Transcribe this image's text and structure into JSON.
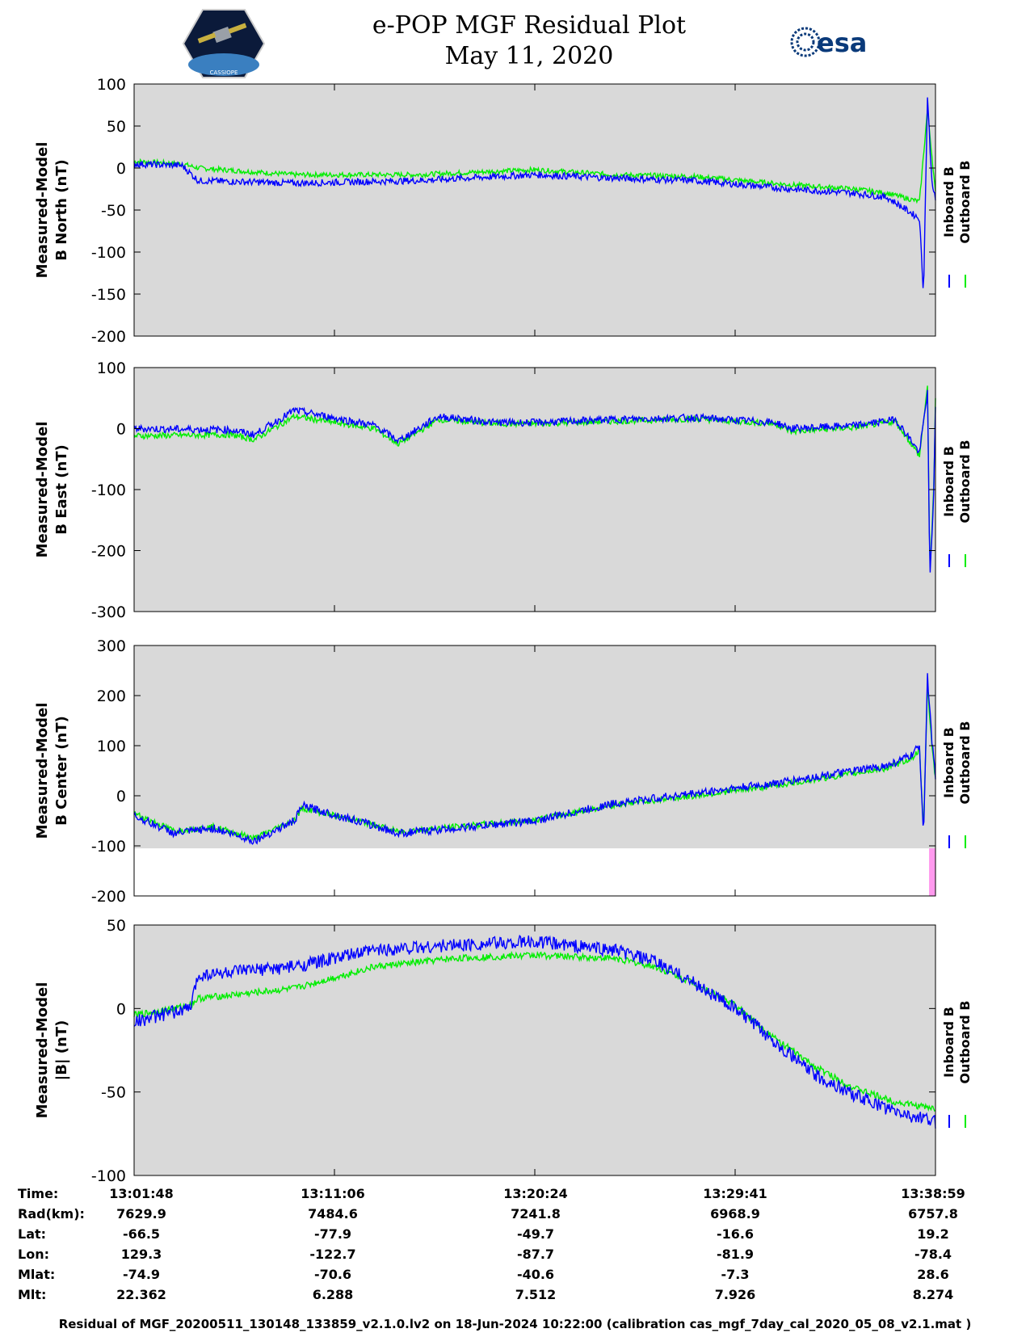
{
  "header": {
    "title": "e-POP MGF Residual Plot",
    "date": "May 11, 2020",
    "left_logo": "CASSIOPE",
    "right_logo": "esa"
  },
  "colors": {
    "inboard": "#0000ff",
    "outboard": "#00ee00",
    "background": "#d9d9d9",
    "flag": "#ff99ee"
  },
  "chart_data": [
    {
      "type": "line",
      "ylabel": [
        "Measured-Model",
        "B North (nT)"
      ],
      "ylim": [
        -200,
        100
      ],
      "yticks": [
        -200,
        -150,
        -100,
        -50,
        0,
        50,
        100
      ],
      "legend": [
        "Inboard B",
        "Outboard B"
      ],
      "series": [
        {
          "name": "Inboard B",
          "t": [
            0,
            0.06,
            0.08,
            0.2,
            0.35,
            0.5,
            0.6,
            0.7,
            0.82,
            0.9,
            0.94,
            0.98,
            0.985,
            0.99,
            0.995,
            1.0
          ],
          "v": [
            5,
            3,
            -15,
            -18,
            -15,
            -8,
            -12,
            -15,
            -25,
            -30,
            -35,
            -60,
            -150,
            85,
            -10,
            -40
          ],
          "noise": 4
        },
        {
          "name": "Outboard B",
          "t": [
            0,
            0.06,
            0.08,
            0.2,
            0.35,
            0.5,
            0.6,
            0.7,
            0.82,
            0.9,
            0.94,
            0.98,
            0.99,
            1.0
          ],
          "v": [
            8,
            5,
            0,
            -8,
            -8,
            -2,
            -8,
            -10,
            -20,
            -25,
            -30,
            -40,
            70,
            -30
          ],
          "noise": 3
        }
      ]
    },
    {
      "type": "line",
      "ylabel": [
        "Measured-Model",
        "B East (nT)"
      ],
      "ylim": [
        -300,
        100
      ],
      "yticks": [
        -300,
        -200,
        -100,
        0,
        100
      ],
      "legend": [
        "Inboard B",
        "Outboard B"
      ],
      "series": [
        {
          "name": "Inboard B",
          "t": [
            0,
            0.12,
            0.15,
            0.2,
            0.3,
            0.33,
            0.38,
            0.45,
            0.5,
            0.6,
            0.7,
            0.8,
            0.82,
            0.9,
            0.95,
            0.97,
            0.98,
            0.99,
            0.993,
            0.998,
            1.0
          ],
          "v": [
            0,
            -2,
            -10,
            30,
            5,
            -20,
            20,
            10,
            10,
            15,
            18,
            10,
            0,
            5,
            15,
            -20,
            -40,
            60,
            -250,
            -100,
            40
          ],
          "noise": 6
        },
        {
          "name": "Outboard B",
          "t": [
            0,
            0.12,
            0.15,
            0.2,
            0.3,
            0.33,
            0.38,
            0.45,
            0.5,
            0.6,
            0.7,
            0.8,
            0.82,
            0.9,
            0.95,
            0.97,
            0.98,
            0.99,
            0.993,
            0.998,
            1.0
          ],
          "v": [
            -12,
            -10,
            -18,
            20,
            0,
            -25,
            15,
            8,
            8,
            12,
            16,
            8,
            -5,
            2,
            12,
            -25,
            -45,
            70,
            -240,
            -90,
            45
          ],
          "noise": 5
        }
      ]
    },
    {
      "type": "line",
      "ylabel": [
        "Measured-Model",
        "B Center (nT)"
      ],
      "ylim": [
        -200,
        300
      ],
      "yticks": [
        -200,
        -100,
        0,
        100,
        200,
        300
      ],
      "legend": [
        "Inboard B",
        "Outboard B"
      ],
      "flag_region": {
        "from": -200,
        "to": -105
      },
      "series": [
        {
          "name": "Inboard B",
          "t": [
            0,
            0.05,
            0.1,
            0.15,
            0.2,
            0.21,
            0.3,
            0.33,
            0.4,
            0.5,
            0.6,
            0.7,
            0.8,
            0.9,
            0.94,
            0.97,
            0.98,
            0.985,
            0.99,
            0.995,
            1.0
          ],
          "v": [
            -40,
            -75,
            -65,
            -90,
            -50,
            -20,
            -60,
            -75,
            -65,
            -50,
            -15,
            5,
            25,
            50,
            60,
            80,
            100,
            -80,
            240,
            120,
            40
          ],
          "noise": 8
        },
        {
          "name": "Outboard B",
          "t": [
            0,
            0.05,
            0.1,
            0.15,
            0.2,
            0.21,
            0.3,
            0.33,
            0.4,
            0.5,
            0.6,
            0.7,
            0.8,
            0.9,
            0.94,
            0.97,
            0.98,
            0.985,
            0.99,
            0.995,
            1.0
          ],
          "v": [
            -35,
            -70,
            -62,
            -85,
            -48,
            -25,
            -58,
            -72,
            -62,
            -48,
            -18,
            0,
            20,
            45,
            55,
            75,
            90,
            -70,
            220,
            110,
            35
          ],
          "noise": 6
        }
      ]
    },
    {
      "type": "line",
      "ylabel": [
        "Measured-Model",
        "|B| (nT)"
      ],
      "ylim": [
        -100,
        50
      ],
      "yticks": [
        -100,
        -50,
        0,
        50
      ],
      "legend": [
        "Inboard B",
        "Outboard B"
      ],
      "series": [
        {
          "name": "Inboard B",
          "t": [
            0,
            0.05,
            0.07,
            0.08,
            0.2,
            0.3,
            0.4,
            0.5,
            0.6,
            0.65,
            0.7,
            0.75,
            0.8,
            0.85,
            0.9,
            0.95,
            1.0
          ],
          "v": [
            -8,
            -2,
            0,
            20,
            25,
            35,
            38,
            40,
            35,
            28,
            15,
            0,
            -20,
            -40,
            -52,
            -62,
            -68
          ],
          "noise": 4
        },
        {
          "name": "Outboard B",
          "t": [
            0,
            0.05,
            0.07,
            0.08,
            0.2,
            0.3,
            0.4,
            0.5,
            0.6,
            0.65,
            0.7,
            0.75,
            0.8,
            0.85,
            0.9,
            0.95,
            1.0
          ],
          "v": [
            -4,
            0,
            2,
            6,
            12,
            25,
            30,
            32,
            30,
            25,
            15,
            2,
            -18,
            -35,
            -48,
            -56,
            -60
          ],
          "noise": 2
        }
      ]
    }
  ],
  "info": {
    "labels": [
      "Time:",
      "Rad(km):",
      "Lat:",
      "Lon:",
      "Mlat:",
      "Mlt:"
    ],
    "columns": [
      [
        "13:01:48",
        "7629.9",
        "-66.5",
        "129.3",
        "-74.9",
        "22.362"
      ],
      [
        "13:11:06",
        "7484.6",
        "-77.9",
        "-122.7",
        "-70.6",
        "6.288"
      ],
      [
        "13:20:24",
        "7241.8",
        "-49.7",
        "-87.7",
        "-40.6",
        "7.512"
      ],
      [
        "13:29:41",
        "6968.9",
        "-16.6",
        "-81.9",
        "-7.3",
        "7.926"
      ],
      [
        "13:38:59",
        "6757.8",
        "19.2",
        "-78.4",
        "28.6",
        "8.274"
      ]
    ]
  },
  "footer": "Residual of MGF_20200511_130148_133859_v2.1.0.lv2 on 18-Jun-2024 10:22:00 (calibration cas_mgf_7day_cal_2020_05_08_v2.1.mat )"
}
